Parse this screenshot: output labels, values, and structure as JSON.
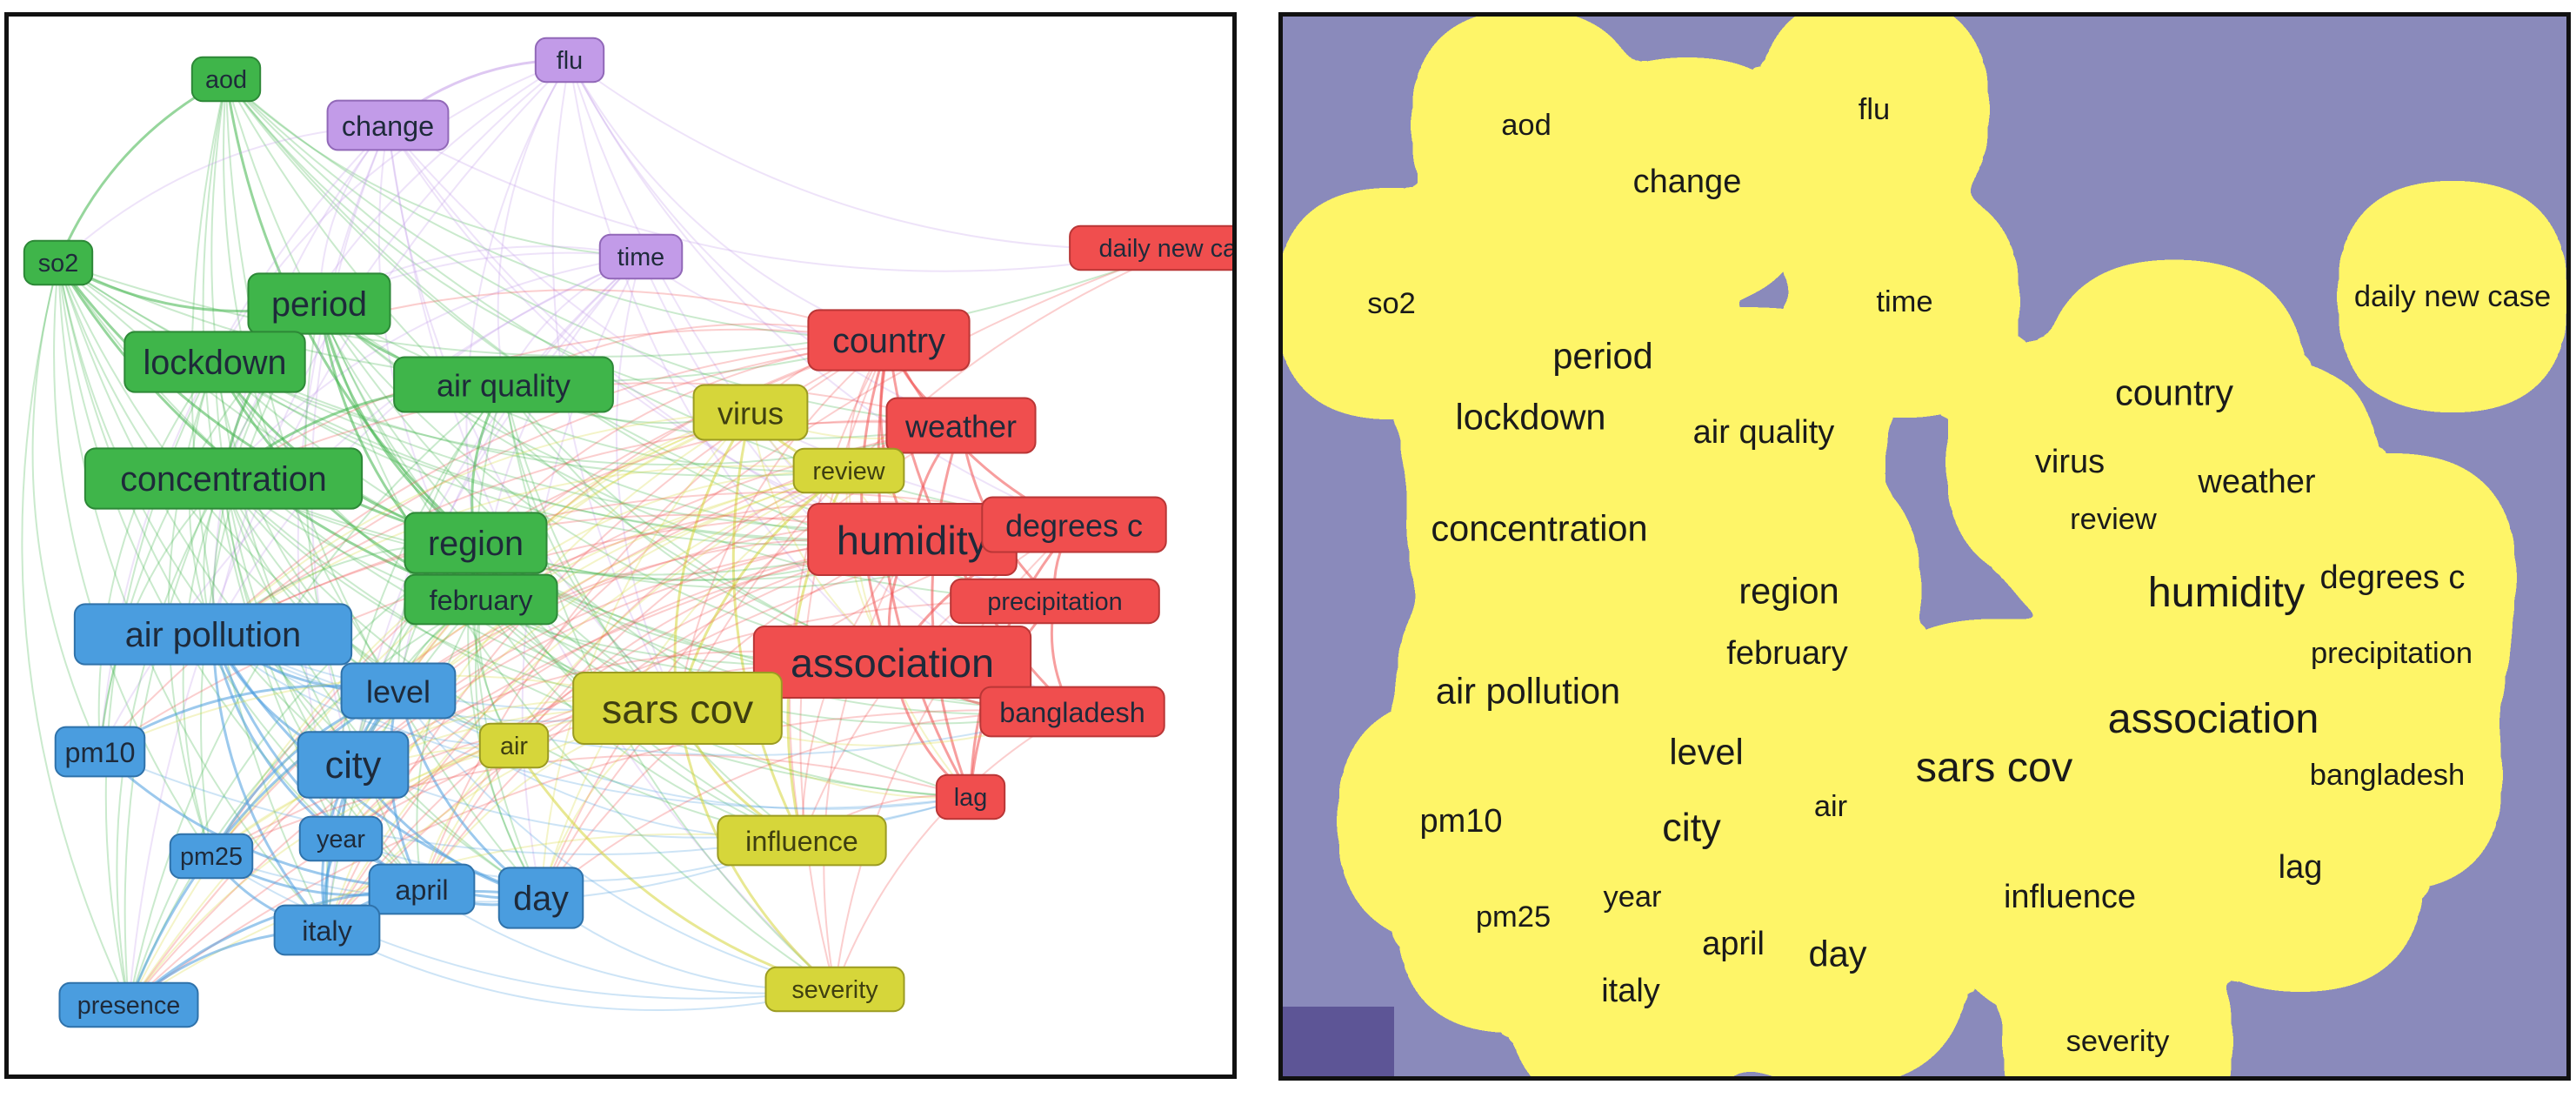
{
  "colors": {
    "red": "#f04e4e",
    "green": "#3fb54a",
    "blue": "#4a9ddf",
    "yellow": "#d6d63a",
    "purple": "#c29be8",
    "density_bg": "#41417f"
  },
  "network": {
    "nodes": [
      {
        "id": "aod",
        "label": "aod",
        "cluster": "green",
        "w": 3
      },
      {
        "id": "flu",
        "label": "flu",
        "cluster": "purple",
        "w": 3
      },
      {
        "id": "change",
        "label": "change",
        "cluster": "purple",
        "w": 4
      },
      {
        "id": "so2",
        "label": "so2",
        "cluster": "green",
        "w": 3
      },
      {
        "id": "time",
        "label": "time",
        "cluster": "purple",
        "w": 3
      },
      {
        "id": "daily-new-case",
        "label": "daily new case",
        "cluster": "red",
        "w": 3
      },
      {
        "id": "period",
        "label": "period",
        "cluster": "green",
        "w": 6
      },
      {
        "id": "country",
        "label": "country",
        "cluster": "red",
        "w": 6
      },
      {
        "id": "lockdown",
        "label": "lockdown",
        "cluster": "green",
        "w": 6
      },
      {
        "id": "air-quality",
        "label": "air quality",
        "cluster": "green",
        "w": 5
      },
      {
        "id": "virus",
        "label": "virus",
        "cluster": "yellow",
        "w": 5
      },
      {
        "id": "weather",
        "label": "weather",
        "cluster": "red",
        "w": 5
      },
      {
        "id": "review",
        "label": "review",
        "cluster": "yellow",
        "w": 3
      },
      {
        "id": "concentration",
        "label": "concentration",
        "cluster": "green",
        "w": 6
      },
      {
        "id": "region",
        "label": "region",
        "cluster": "green",
        "w": 6
      },
      {
        "id": "humidity",
        "label": "humidity",
        "cluster": "red",
        "w": 8
      },
      {
        "id": "degrees-c",
        "label": "degrees c",
        "cluster": "red",
        "w": 5
      },
      {
        "id": "february",
        "label": "february",
        "cluster": "green",
        "w": 4
      },
      {
        "id": "precipitation",
        "label": "precipitation",
        "cluster": "red",
        "w": 3
      },
      {
        "id": "air-pollution",
        "label": "air pollution",
        "cluster": "blue",
        "w": 6
      },
      {
        "id": "association",
        "label": "association",
        "cluster": "red",
        "w": 8
      },
      {
        "id": "level",
        "label": "level",
        "cluster": "blue",
        "w": 5
      },
      {
        "id": "sars-cov",
        "label": "sars cov",
        "cluster": "yellow",
        "w": 8
      },
      {
        "id": "bangladesh",
        "label": "bangladesh",
        "cluster": "red",
        "w": 4
      },
      {
        "id": "pm10",
        "label": "pm10",
        "cluster": "blue",
        "w": 4
      },
      {
        "id": "city",
        "label": "city",
        "cluster": "blue",
        "w": 7
      },
      {
        "id": "air",
        "label": "air",
        "cluster": "yellow",
        "w": 3
      },
      {
        "id": "lag",
        "label": "lag",
        "cluster": "red",
        "w": 3
      },
      {
        "id": "year",
        "label": "year",
        "cluster": "blue",
        "w": 3
      },
      {
        "id": "pm25",
        "label": "pm25",
        "cluster": "blue",
        "w": 3
      },
      {
        "id": "influence",
        "label": "influence",
        "cluster": "yellow",
        "w": 4
      },
      {
        "id": "april",
        "label": "april",
        "cluster": "blue",
        "w": 4
      },
      {
        "id": "day",
        "label": "day",
        "cluster": "blue",
        "w": 6
      },
      {
        "id": "italy",
        "label": "italy",
        "cluster": "blue",
        "w": 4
      },
      {
        "id": "severity",
        "label": "severity",
        "cluster": "yellow",
        "w": 3
      },
      {
        "id": "presence",
        "label": "presence",
        "cluster": "blue",
        "w": 3
      }
    ]
  },
  "density": {
    "labels": [
      {
        "text": "aod",
        "w": 3
      },
      {
        "text": "flu",
        "w": 3
      },
      {
        "text": "change",
        "w": 4
      },
      {
        "text": "so2",
        "w": 3
      },
      {
        "text": "time",
        "w": 3
      },
      {
        "text": "daily new case",
        "w": 3
      },
      {
        "text": "period",
        "w": 5
      },
      {
        "text": "country",
        "w": 5
      },
      {
        "text": "lockdown",
        "w": 5
      },
      {
        "text": "air quality",
        "w": 4
      },
      {
        "text": "virus",
        "w": 4
      },
      {
        "text": "weather",
        "w": 4
      },
      {
        "text": "review",
        "w": 3
      },
      {
        "text": "concentration",
        "w": 5
      },
      {
        "text": "region",
        "w": 5
      },
      {
        "text": "humidity",
        "w": 7
      },
      {
        "text": "degrees c",
        "w": 4
      },
      {
        "text": "february",
        "w": 4
      },
      {
        "text": "precipitation",
        "w": 3
      },
      {
        "text": "air pollution",
        "w": 5
      },
      {
        "text": "association",
        "w": 7
      },
      {
        "text": "level",
        "w": 5
      },
      {
        "text": "sars cov",
        "w": 7
      },
      {
        "text": "bangladesh",
        "w": 3
      },
      {
        "text": "pm10",
        "w": 4
      },
      {
        "text": "city",
        "w": 6
      },
      {
        "text": "air",
        "w": 3
      },
      {
        "text": "lag",
        "w": 4
      },
      {
        "text": "year",
        "w": 3
      },
      {
        "text": "pm25",
        "w": 3
      },
      {
        "text": "influence",
        "w": 4
      },
      {
        "text": "april",
        "w": 4
      },
      {
        "text": "day",
        "w": 5
      },
      {
        "text": "italy",
        "w": 4
      },
      {
        "text": "severity",
        "w": 3
      }
    ]
  }
}
